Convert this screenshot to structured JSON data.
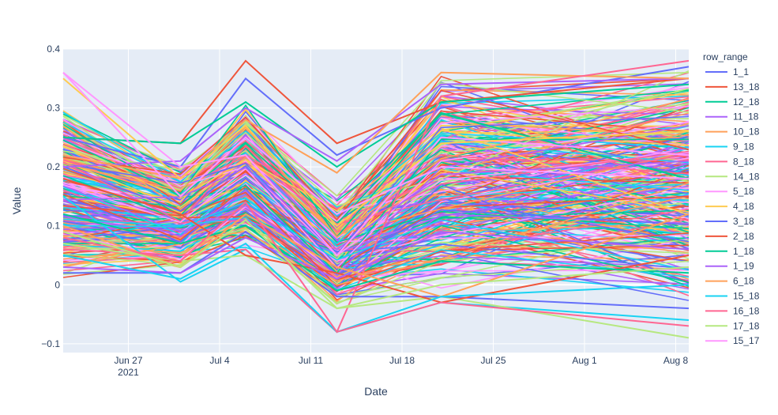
{
  "chart_data": {
    "type": "line",
    "xlabel": "Date",
    "ylabel": "Value",
    "xlim": [
      "2021-06-22",
      "2021-08-09"
    ],
    "ylim": [
      -0.115,
      0.4
    ],
    "x_ticks": [
      {
        "date": "2021-06-27",
        "label": "Jun 27",
        "sublabel": "2021"
      },
      {
        "date": "2021-07-04",
        "label": "Jul 4",
        "sublabel": ""
      },
      {
        "date": "2021-07-11",
        "label": "Jul 11",
        "sublabel": ""
      },
      {
        "date": "2021-07-18",
        "label": "Jul 18",
        "sublabel": ""
      },
      {
        "date": "2021-07-25",
        "label": "Jul 25",
        "sublabel": ""
      },
      {
        "date": "2021-08-01",
        "label": "Aug 1",
        "sublabel": ""
      },
      {
        "date": "2021-08-08",
        "label": "Aug 8",
        "sublabel": ""
      }
    ],
    "y_ticks": [
      {
        "value": -0.1,
        "label": "−0.1"
      },
      {
        "value": 0,
        "label": "0"
      },
      {
        "value": 0.1,
        "label": "0.1"
      },
      {
        "value": 0.2,
        "label": "0.2"
      },
      {
        "value": 0.3,
        "label": "0.3"
      },
      {
        "value": 0.4,
        "label": "0.4"
      }
    ],
    "grid": true,
    "legend": {
      "position": "right",
      "title": "row_range"
    },
    "x": [
      "2021-06-22",
      "2021-07-01",
      "2021-07-06",
      "2021-07-13",
      "2021-07-21",
      "2021-08-09"
    ],
    "series": [
      {
        "name": "1_1",
        "color": "#636efa",
        "values": [
          0.25,
          0.2,
          0.35,
          0.22,
          0.3,
          0.37
        ]
      },
      {
        "name": "13_18",
        "color": "#EF553B",
        "values": [
          0.25,
          0.24,
          0.38,
          0.24,
          0.31,
          0.35
        ]
      },
      {
        "name": "12_18",
        "color": "#00cc96",
        "values": [
          0.25,
          0.24,
          0.31,
          0.2,
          0.31,
          0.34
        ]
      },
      {
        "name": "11_18",
        "color": "#ab63fa",
        "values": [
          0.2,
          0.21,
          0.3,
          0.21,
          0.34,
          0.35
        ]
      },
      {
        "name": "10_18",
        "color": "#FFA15A",
        "values": [
          0.22,
          0.18,
          0.28,
          0.19,
          0.36,
          0.35
        ]
      },
      {
        "name": "9_18",
        "color": "#19d3f3",
        "values": [
          0.15,
          0.005,
          0.06,
          -0.08,
          -0.03,
          -0.06
        ]
      },
      {
        "name": "8_18",
        "color": "#FF6692",
        "values": [
          0.06,
          0.05,
          0.06,
          -0.08,
          0.32,
          0.38
        ]
      },
      {
        "name": "14_18",
        "color": "#B6E880",
        "values": [
          0.07,
          0.04,
          0.05,
          -0.04,
          -0.02,
          -0.09
        ]
      },
      {
        "name": "5_18",
        "color": "#FF97FF",
        "values": [
          0.36,
          0.2,
          0.22,
          0.05,
          0.25,
          0.22
        ]
      },
      {
        "name": "4_18",
        "color": "#FECB52",
        "values": [
          0.35,
          0.18,
          0.27,
          0.1,
          0.24,
          0.26
        ]
      },
      {
        "name": "3_18",
        "color": "#636efa",
        "values": [
          0.02,
          0.02,
          0.09,
          -0.02,
          -0.02,
          -0.04
        ]
      },
      {
        "name": "2_18",
        "color": "#EF553B",
        "values": [
          0.18,
          0.12,
          0.05,
          0.02,
          -0.03,
          0.05
        ]
      },
      {
        "name": "1_18",
        "color": "#00cc96",
        "values": [
          0.12,
          0.07,
          0.1,
          -0.01,
          0.04,
          0.02
        ]
      },
      {
        "name": "1_19",
        "color": "#ab63fa",
        "values": [
          0.03,
          0.02,
          0.08,
          0.01,
          0.09,
          0.06
        ]
      },
      {
        "name": "6_18",
        "color": "#FFA15A",
        "values": [
          0.1,
          0.03,
          0.12,
          0.03,
          -0.02,
          0.12
        ]
      },
      {
        "name": "15_18",
        "color": "#19d3f3",
        "values": [
          0.05,
          0.01,
          0.07,
          -0.08,
          -0.02,
          0.0
        ]
      },
      {
        "name": "16_18",
        "color": "#FF6692",
        "values": [
          0.08,
          0.04,
          0.14,
          -0.08,
          -0.03,
          -0.07
        ]
      },
      {
        "name": "17_18",
        "color": "#B6E880",
        "values": [
          0.09,
          0.03,
          0.11,
          -0.04,
          0.0,
          0.03
        ]
      },
      {
        "name": "15_17",
        "color": "#FF97FF",
        "values": [
          0.36,
          0.15,
          0.25,
          0.12,
          0.2,
          0.18
        ]
      }
    ]
  }
}
